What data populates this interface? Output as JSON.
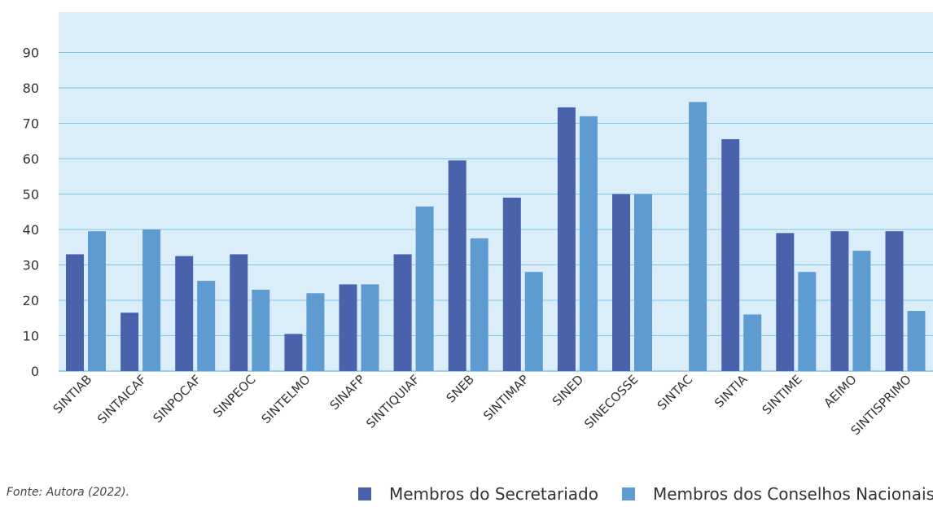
{
  "colors": {
    "secretariado": "#4a62ab",
    "conselhos": "#5d9bd0",
    "plot_bg": "#dcedfa",
    "gridline": "#7ec7e6"
  },
  "source_note": "Fonte: Autora (2022).",
  "legend": {
    "secretariado": "Membros do Secretariado",
    "conselhos": "Membros dos Conselhos Nacionais"
  },
  "chart_data": {
    "type": "bar",
    "categories": [
      "SINTIAB",
      "SINTAICAF",
      "SINPOCAF",
      "SINPEOC",
      "SINTELMO",
      "SINAFP",
      "SINTIQUIAF",
      "SNEB",
      "SINTIMAP",
      "SINED",
      "SINECOSSE",
      "SINTAC",
      "SINTIA",
      "SINTIME",
      "AEIMO",
      "SINTISPRIMO"
    ],
    "series": [
      {
        "name": "Membros do Secretariado",
        "values": [
          33,
          16.5,
          32.5,
          33,
          10.5,
          24.5,
          33,
          59.5,
          49,
          74.5,
          50,
          0,
          65.5,
          39,
          39.5,
          39.5
        ]
      },
      {
        "name": "Membros dos Conselhos Nacionais",
        "values": [
          39.5,
          40,
          25.5,
          23,
          22,
          24.5,
          46.5,
          37.5,
          28,
          72,
          50,
          76,
          16,
          28,
          34,
          17
        ]
      }
    ],
    "yticks": [
      0,
      10,
      20,
      30,
      40,
      50,
      60,
      70,
      80,
      90
    ],
    "ylim": [
      0,
      100
    ],
    "grid": true,
    "legend_position": "bottom-right"
  }
}
